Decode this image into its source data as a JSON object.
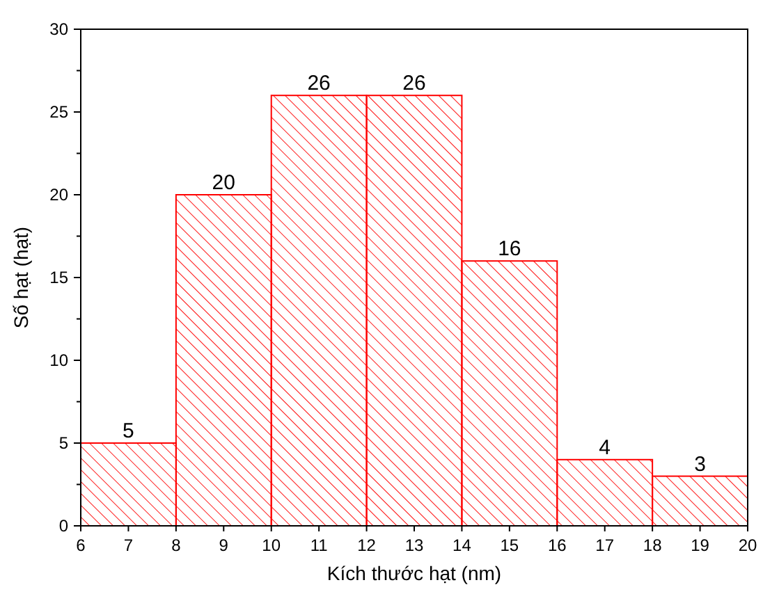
{
  "chart_data": {
    "type": "histogram",
    "xlabel": "Kích thước hạt (nm)",
    "ylabel": "Số hạt (hạt)",
    "bins": [
      6,
      8,
      10,
      12,
      14,
      16,
      18,
      20
    ],
    "values": [
      5,
      20,
      26,
      26,
      16,
      4,
      3
    ],
    "color": "#ff0000",
    "xlim": [
      6,
      20
    ],
    "xticks": [
      6,
      7,
      8,
      9,
      10,
      11,
      12,
      13,
      14,
      15,
      16,
      17,
      18,
      19,
      20
    ],
    "ylim": [
      0,
      30
    ],
    "yticks": [
      0,
      5,
      10,
      15,
      20,
      25,
      30
    ],
    "data_labels": true,
    "grid": false
  }
}
